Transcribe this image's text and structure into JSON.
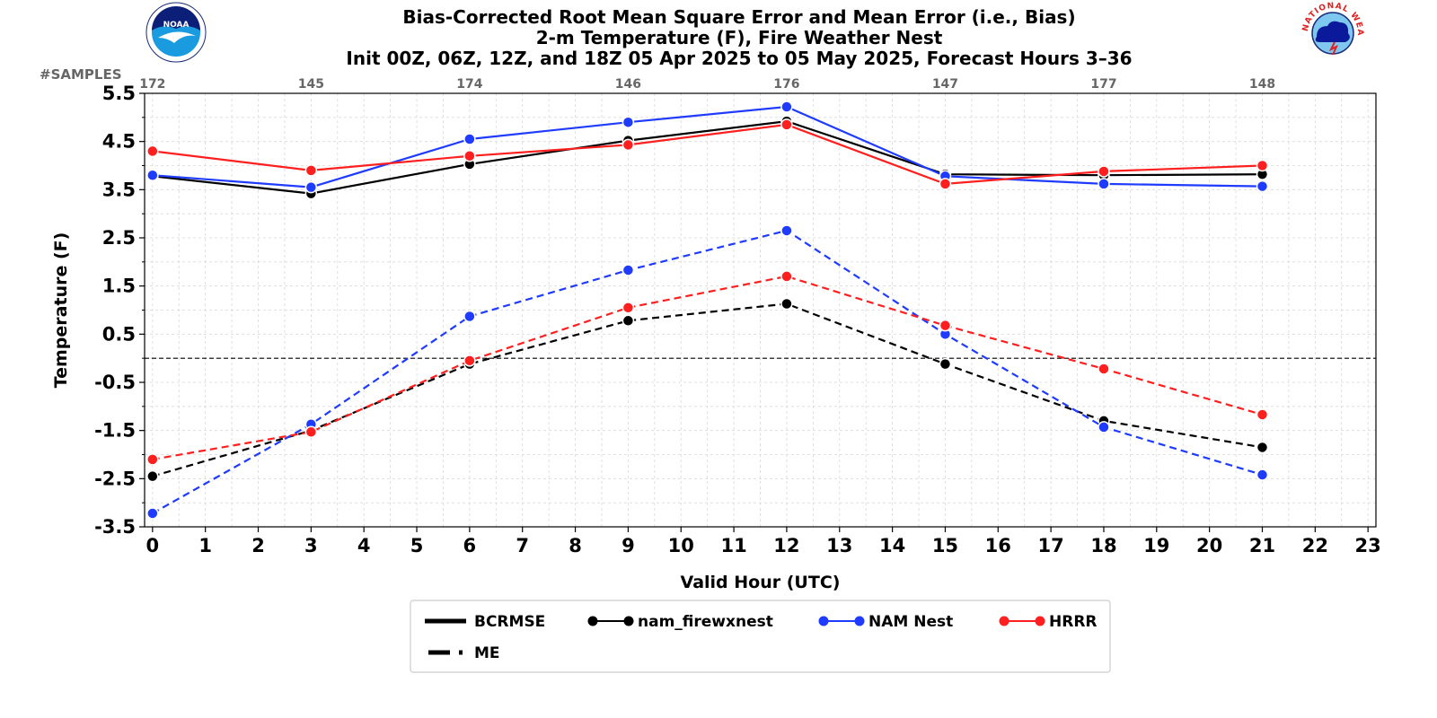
{
  "titles": [
    "Bias-Corrected Root Mean Square Error and Mean Error (i.e., Bias)",
    "2-m Temperature (F), Fire Weather Nest",
    "Init 00Z, 06Z, 12Z, and 18Z 05 Apr 2025 to 05 May 2025, Forecast Hours 3–36"
  ],
  "logos": {
    "left": {
      "name": "NOAA",
      "text": "NOAA"
    },
    "right": {
      "name": "National Weather Service",
      "text": "NATIONAL WEATHER SERVICE"
    }
  },
  "colors": {
    "model_a": "#000000",
    "model_b": "#1f3bff",
    "model_c": "#ff1f1f",
    "zero_line": "#000000",
    "grid": "#d9d9d9"
  },
  "chart_data": {
    "type": "line",
    "xlabel": "Valid Hour (UTC)",
    "ylabel": "Temperature (F)",
    "samples_label": "#SAMPLES",
    "x_ticks": [
      0,
      1,
      2,
      3,
      4,
      5,
      6,
      7,
      8,
      9,
      10,
      11,
      12,
      13,
      14,
      15,
      16,
      17,
      18,
      19,
      20,
      21,
      22,
      23
    ],
    "y_ticks": [
      "5.5",
      "4.5",
      "3.5",
      "2.5",
      "1.5",
      "0.5",
      "-0.5",
      "-1.5",
      "-2.5",
      "-3.5"
    ],
    "xlim": [
      -0.15,
      23.15
    ],
    "ylim": [
      -3.5,
      5.5
    ],
    "grid": true,
    "zero_line": 0,
    "samples": [
      {
        "x": 0,
        "n": "172"
      },
      {
        "x": 3,
        "n": "145"
      },
      {
        "x": 6,
        "n": "174"
      },
      {
        "x": 9,
        "n": "146"
      },
      {
        "x": 12,
        "n": "176"
      },
      {
        "x": 15,
        "n": "147"
      },
      {
        "x": 18,
        "n": "177"
      },
      {
        "x": 21,
        "n": "148"
      }
    ],
    "x": [
      0,
      3,
      6,
      9,
      12,
      15,
      18,
      21
    ],
    "series": [
      {
        "name": "nam_firewxnest",
        "metric": "BCRMSE",
        "color": "#000000",
        "values": [
          3.78,
          3.42,
          4.03,
          4.52,
          4.92,
          3.82,
          3.8,
          3.82
        ]
      },
      {
        "name": "NAM Nest",
        "metric": "BCRMSE",
        "color": "#1f3bff",
        "values": [
          3.8,
          3.55,
          4.55,
          4.9,
          5.22,
          3.78,
          3.62,
          3.57
        ]
      },
      {
        "name": "HRRR",
        "metric": "BCRMSE",
        "color": "#ff1f1f",
        "values": [
          4.3,
          3.9,
          4.2,
          4.43,
          4.85,
          3.62,
          3.88,
          4.0
        ]
      },
      {
        "name": "nam_firewxnest",
        "metric": "ME",
        "color": "#000000",
        "values": [
          -2.45,
          -1.5,
          -0.12,
          0.78,
          1.13,
          -0.12,
          -1.3,
          -1.85
        ]
      },
      {
        "name": "NAM Nest",
        "metric": "ME",
        "color": "#1f3bff",
        "values": [
          -3.22,
          -1.37,
          0.87,
          1.83,
          2.65,
          0.5,
          -1.43,
          -2.42
        ]
      },
      {
        "name": "HRRR",
        "metric": "ME",
        "color": "#ff1f1f",
        "values": [
          -2.1,
          -1.53,
          -0.05,
          1.05,
          1.7,
          0.68,
          -0.22,
          -1.17
        ]
      }
    ],
    "legend": {
      "placement": "bottom-center",
      "entries": [
        {
          "label": "BCRMSE",
          "kind": "solid"
        },
        {
          "label": "nam_firewxnest",
          "kind": "marker",
          "color": "#000000"
        },
        {
          "label": "NAM Nest",
          "kind": "marker",
          "color": "#1f3bff"
        },
        {
          "label": "HRRR",
          "kind": "marker",
          "color": "#ff1f1f"
        },
        {
          "label": "ME",
          "kind": "dashed"
        }
      ]
    }
  }
}
